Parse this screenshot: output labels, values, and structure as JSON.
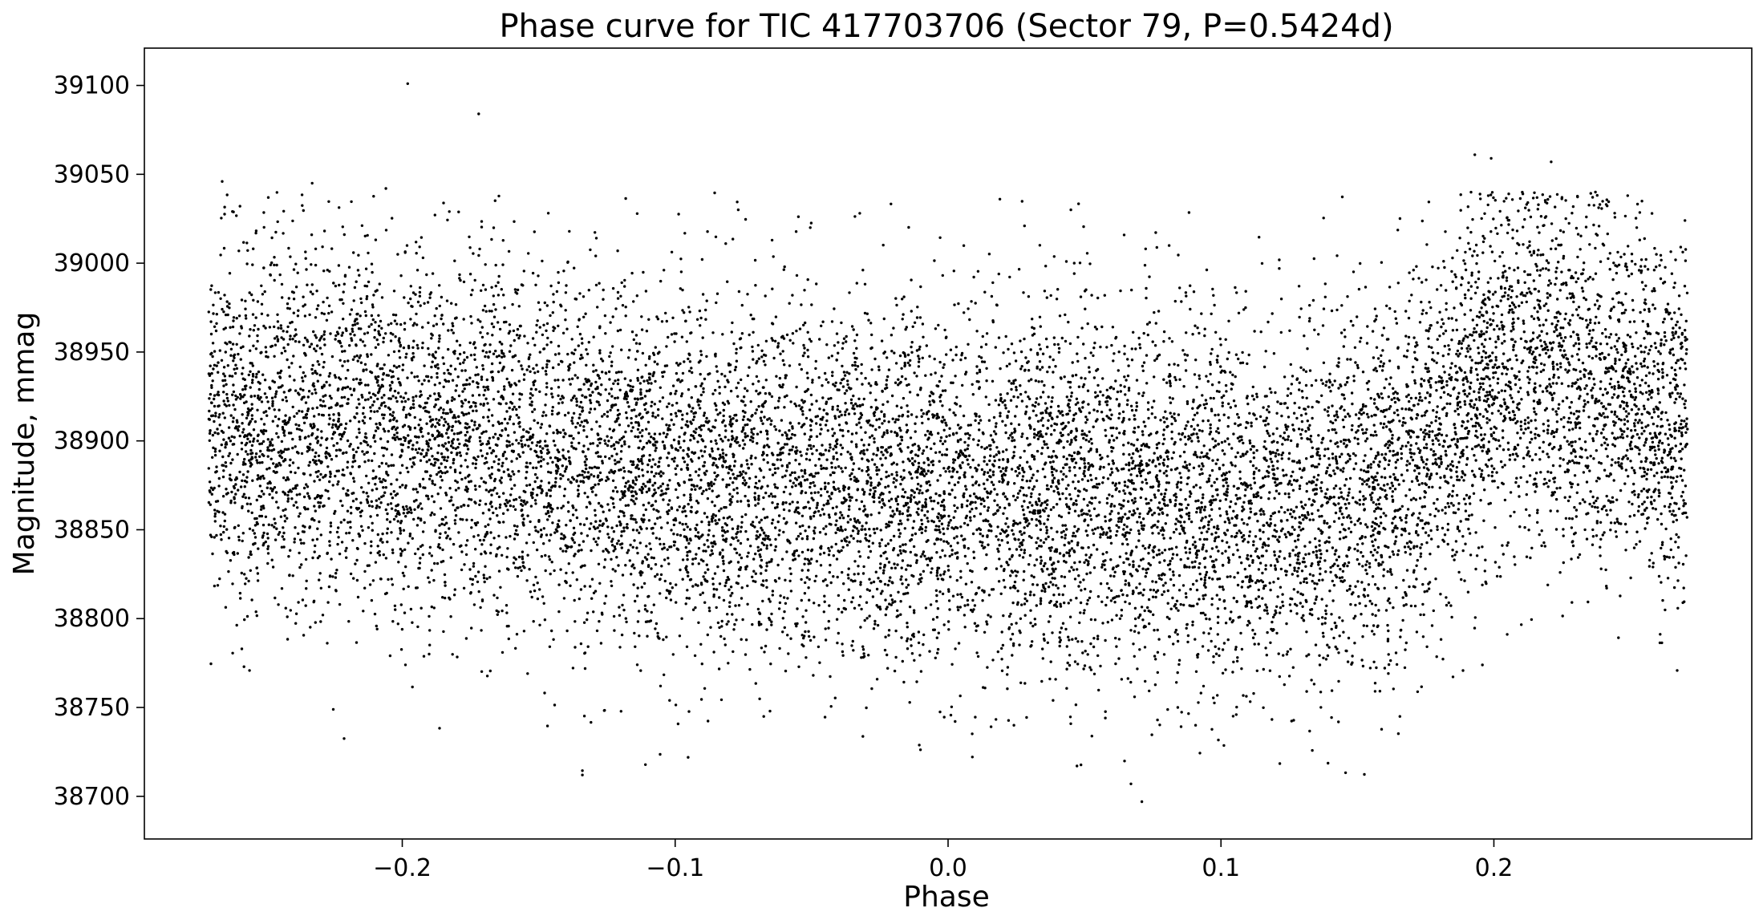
{
  "chart_data": {
    "type": "scatter",
    "title": "Phase curve for TIC 417703706 (Sector 79, P=0.5424d)",
    "xlabel": "Phase",
    "ylabel": "Magnitude, mmag",
    "xlim": [
      -0.2945,
      0.2945
    ],
    "ylim": [
      38676,
      39121
    ],
    "xticks": [
      {
        "value": -0.2,
        "label": "−0.2"
      },
      {
        "value": -0.1,
        "label": "−0.1"
      },
      {
        "value": 0.0,
        "label": "0.0"
      },
      {
        "value": 0.1,
        "label": "0.1"
      },
      {
        "value": 0.2,
        "label": "0.2"
      }
    ],
    "yticks": [
      {
        "value": 38700,
        "label": "38700"
      },
      {
        "value": 38750,
        "label": "38750"
      },
      {
        "value": 38800,
        "label": "38800"
      },
      {
        "value": 38850,
        "label": "38850"
      },
      {
        "value": 38900,
        "label": "38900"
      },
      {
        "value": 38950,
        "label": "38950"
      },
      {
        "value": 39000,
        "label": "39000"
      },
      {
        "value": 39050,
        "label": "39050"
      },
      {
        "value": 39100,
        "label": "39100"
      }
    ],
    "grid": false,
    "marker_color": "#000000",
    "series": [
      {
        "x_range": [
          -0.271,
          0.271
        ],
        "trend": {
          "x": [
            -0.27,
            -0.2,
            -0.15,
            -0.1,
            -0.05,
            0.0,
            0.05,
            0.1,
            0.13,
            0.16,
            0.18,
            0.2,
            0.22,
            0.25,
            0.27
          ],
          "y": [
            38912,
            38905,
            38893,
            38882,
            38877,
            38874,
            38872,
            38866,
            38862,
            38875,
            38905,
            38935,
            38943,
            38925,
            38912
          ]
        },
        "spread_sd": 52,
        "approx_point_count": 13000,
        "notable_points": [
          {
            "x": -0.198,
            "y": 39101
          },
          {
            "x": -0.172,
            "y": 39084
          },
          {
            "x": -0.134,
            "y": 38712
          },
          {
            "x": 0.071,
            "y": 38697
          },
          {
            "x": 0.067,
            "y": 38707
          },
          {
            "x": 0.193,
            "y": 39061
          },
          {
            "x": 0.199,
            "y": 39059
          },
          {
            "x": 0.221,
            "y": 39057
          },
          {
            "x": -0.266,
            "y": 39046
          },
          {
            "x": -0.233,
            "y": 39045
          },
          {
            "x": -0.206,
            "y": 39042
          },
          {
            "x": 0.045,
            "y": 39030
          },
          {
            "x": 0.028,
            "y": 39021
          }
        ]
      }
    ]
  }
}
